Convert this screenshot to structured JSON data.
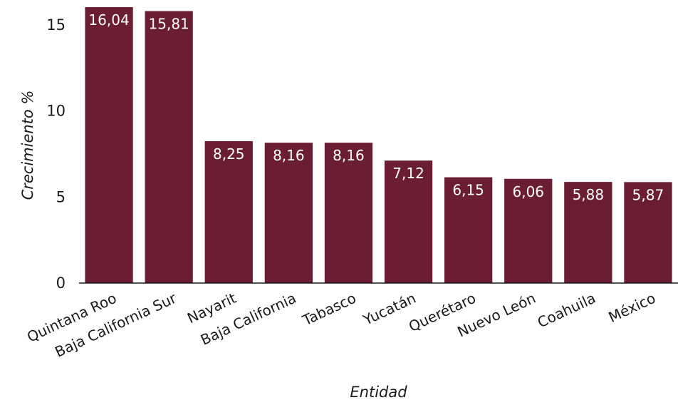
{
  "chart_data": {
    "type": "bar",
    "categories": [
      "Quintana Roo",
      "Baja California Sur",
      "Nayarit",
      "Baja California",
      "Tabasco",
      "Yucatán",
      "Querétaro",
      "Nuevo León",
      "Coahuila",
      "México"
    ],
    "values": [
      16.04,
      15.81,
      8.25,
      8.16,
      8.16,
      7.12,
      6.15,
      6.06,
      5.88,
      5.87
    ],
    "value_labels": [
      "16,04",
      "15,81",
      "8,25",
      "8,16",
      "8,16",
      "7,12",
      "6,15",
      "6,06",
      "5,88",
      "5,87"
    ],
    "xlabel": "Entidad",
    "ylabel": "Crecimiento %",
    "yticks": [
      0,
      5,
      10,
      15
    ],
    "ylim": [
      0,
      16.04
    ],
    "bar_color": "#6b1d33",
    "grid": false,
    "legend": "none"
  }
}
